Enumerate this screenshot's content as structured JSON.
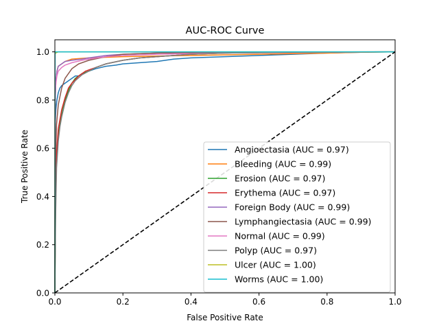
{
  "chart_data": {
    "type": "line",
    "title": "AUC-ROC Curve",
    "xlabel": "False Positive Rate",
    "ylabel": "True Positive Rate",
    "xlim": [
      0,
      1
    ],
    "ylim": [
      0,
      1.05
    ],
    "xticks": [
      "0.0",
      "0.2",
      "0.4",
      "0.6",
      "0.8",
      "1.0"
    ],
    "yticks": [
      "0.0",
      "0.2",
      "0.4",
      "0.6",
      "0.8",
      "1.0"
    ],
    "grid": false,
    "legend_position": "lower-right",
    "series": [
      {
        "name": "Angioectasia (AUC = 0.97)",
        "color": "#1f77b4",
        "x": [
          0,
          0.001,
          0.003,
          0.006,
          0.01,
          0.015,
          0.02,
          0.03,
          0.04,
          0.05,
          0.06,
          0.07,
          0.08,
          0.1,
          0.12,
          0.15,
          0.18,
          0.2,
          0.25,
          0.3,
          0.35,
          0.4,
          0.5,
          0.6,
          0.7,
          0.8,
          0.9,
          1.0
        ],
        "y": [
          0,
          0.7,
          0.76,
          0.8,
          0.83,
          0.85,
          0.86,
          0.87,
          0.88,
          0.89,
          0.9,
          0.9,
          0.91,
          0.92,
          0.93,
          0.94,
          0.945,
          0.95,
          0.955,
          0.96,
          0.97,
          0.975,
          0.98,
          0.985,
          0.99,
          0.995,
          0.998,
          1.0
        ]
      },
      {
        "name": "Bleeding (AUC = 0.99)",
        "color": "#ff7f0e",
        "x": [
          0,
          0.001,
          0.003,
          0.006,
          0.01,
          0.02,
          0.03,
          0.04,
          0.05,
          0.1,
          0.2,
          0.4,
          0.6,
          0.8,
          0.9,
          1.0
        ],
        "y": [
          0,
          0.8,
          0.88,
          0.92,
          0.94,
          0.95,
          0.96,
          0.965,
          0.97,
          0.975,
          0.98,
          0.985,
          0.99,
          0.995,
          0.998,
          1.0
        ]
      },
      {
        "name": "Erosion (AUC = 0.97)",
        "color": "#2ca02c",
        "x": [
          0,
          0.002,
          0.005,
          0.01,
          0.015,
          0.02,
          0.03,
          0.04,
          0.05,
          0.06,
          0.08,
          0.1,
          0.12,
          0.15,
          0.2,
          0.25,
          0.3,
          0.4,
          0.5,
          0.7,
          1.0
        ],
        "y": [
          0,
          0.35,
          0.55,
          0.65,
          0.7,
          0.74,
          0.8,
          0.84,
          0.87,
          0.89,
          0.91,
          0.92,
          0.935,
          0.95,
          0.965,
          0.975,
          0.98,
          0.99,
          0.995,
          0.998,
          1.0
        ]
      },
      {
        "name": "Erythema (AUC = 0.97)",
        "color": "#d62728",
        "x": [
          0,
          0.002,
          0.005,
          0.01,
          0.015,
          0.02,
          0.03,
          0.04,
          0.05,
          0.07,
          0.09,
          0.12,
          0.15,
          0.2,
          0.25,
          0.3,
          0.4,
          0.5,
          0.7,
          1.0
        ],
        "y": [
          0,
          0.4,
          0.58,
          0.68,
          0.72,
          0.76,
          0.81,
          0.85,
          0.87,
          0.9,
          0.92,
          0.935,
          0.95,
          0.965,
          0.975,
          0.98,
          0.99,
          0.995,
          0.998,
          1.0
        ]
      },
      {
        "name": "Foreign Body (AUC = 0.99)",
        "color": "#9467bd",
        "x": [
          0,
          0.001,
          0.003,
          0.006,
          0.01,
          0.02,
          0.03,
          0.05,
          0.08,
          0.1,
          0.15,
          0.2,
          0.3,
          0.5,
          1.0
        ],
        "y": [
          0,
          0.8,
          0.88,
          0.92,
          0.94,
          0.95,
          0.96,
          0.965,
          0.97,
          0.975,
          0.985,
          0.99,
          0.995,
          0.998,
          1.0
        ]
      },
      {
        "name": "Lymphangiectasia (AUC = 0.99)",
        "color": "#8c564b",
        "x": [
          0,
          0.002,
          0.005,
          0.01,
          0.02,
          0.03,
          0.04,
          0.05,
          0.07,
          0.1,
          0.15,
          0.2,
          0.3,
          0.5,
          1.0
        ],
        "y": [
          0,
          0.55,
          0.7,
          0.78,
          0.85,
          0.89,
          0.91,
          0.93,
          0.95,
          0.965,
          0.98,
          0.99,
          0.995,
          0.998,
          1.0
        ]
      },
      {
        "name": "Normal (AUC = 0.99)",
        "color": "#e377c2",
        "x": [
          0,
          0.001,
          0.003,
          0.006,
          0.01,
          0.02,
          0.03,
          0.05,
          0.08,
          0.1,
          0.15,
          0.2,
          0.3,
          0.5,
          1.0
        ],
        "y": [
          0,
          0.82,
          0.87,
          0.9,
          0.92,
          0.935,
          0.945,
          0.955,
          0.965,
          0.97,
          0.98,
          0.985,
          0.99,
          0.995,
          1.0
        ]
      },
      {
        "name": "Polyp (AUC = 0.97)",
        "color": "#7f7f7f",
        "x": [
          0,
          0.002,
          0.005,
          0.01,
          0.015,
          0.02,
          0.03,
          0.04,
          0.05,
          0.06,
          0.08,
          0.1,
          0.12,
          0.15,
          0.2,
          0.25,
          0.3,
          0.4,
          0.5,
          0.7,
          1.0
        ],
        "y": [
          0,
          0.3,
          0.52,
          0.63,
          0.69,
          0.73,
          0.79,
          0.83,
          0.86,
          0.88,
          0.905,
          0.92,
          0.935,
          0.95,
          0.965,
          0.975,
          0.98,
          0.99,
          0.995,
          0.998,
          1.0
        ]
      },
      {
        "name": "Ulcer (AUC = 1.00)",
        "color": "#bcbd22",
        "x": [
          0,
          0.0005,
          0.002,
          0.01,
          1.0
        ],
        "y": [
          0,
          0.99,
          0.995,
          1.0,
          1.0
        ]
      },
      {
        "name": "Worms (AUC = 1.00)",
        "color": "#17becf",
        "x": [
          0,
          0.0005,
          1.0
        ],
        "y": [
          0,
          1.0,
          1.0
        ]
      },
      {
        "name": "",
        "color": "#000000",
        "dashed": true,
        "reference": true,
        "x": [
          0,
          1
        ],
        "y": [
          0,
          1
        ]
      }
    ]
  }
}
